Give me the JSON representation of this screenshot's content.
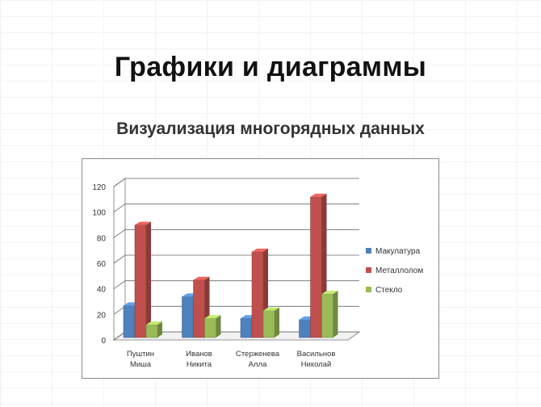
{
  "slide": {
    "title": "Графики и диаграммы"
  },
  "chart_data": {
    "type": "bar",
    "title": "Визуализация многорядных данных",
    "categories": [
      [
        "Пуштин",
        "Миша"
      ],
      [
        "Иванов",
        "Никита"
      ],
      [
        "Стерженева",
        "Алла"
      ],
      [
        "Васильнов",
        "Николай"
      ]
    ],
    "series": [
      {
        "name": "Макулатура",
        "values": [
          25,
          32,
          15,
          14
        ],
        "color": "#4f81bd"
      },
      {
        "name": "Металлолом",
        "values": [
          88,
          45,
          67,
          110
        ],
        "color": "#c0504d"
      },
      {
        "name": "Стекло",
        "values": [
          10,
          15,
          21,
          34
        ],
        "color": "#9bbb59"
      }
    ],
    "ylim": [
      0,
      120
    ],
    "yticks": [
      0,
      20,
      40,
      60,
      80,
      100,
      120
    ],
    "grid": true,
    "legend": "right"
  }
}
